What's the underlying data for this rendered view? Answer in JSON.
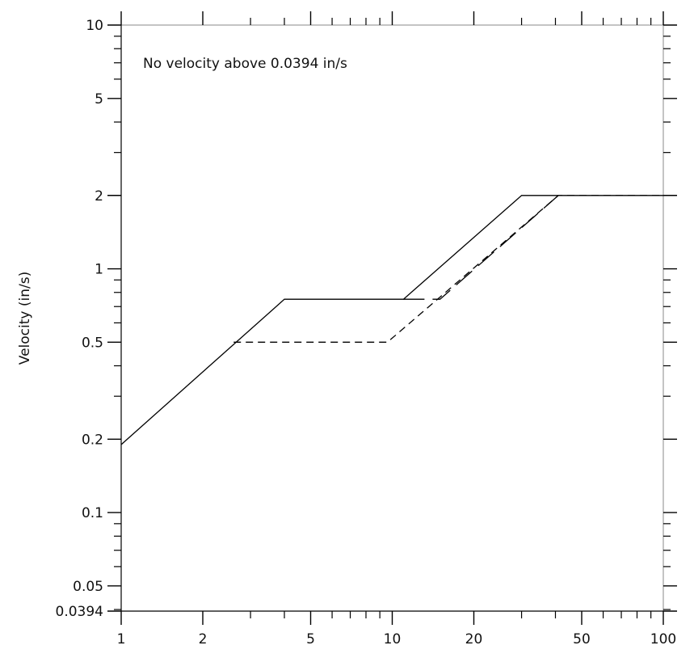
{
  "chart_data": {
    "type": "line",
    "title": "",
    "xlabel": "",
    "ylabel": "Velocity (in/s)",
    "xscale": "log",
    "yscale": "log",
    "xlim": [
      1,
      100
    ],
    "ylim": [
      0.0394,
      10
    ],
    "grid": false,
    "legend": "none",
    "annotation": "No velocity above 0.0394 in/s",
    "x_ticks": [
      {
        "value": 1,
        "label": "1"
      },
      {
        "value": 2,
        "label": "2"
      },
      {
        "value": 5,
        "label": "5"
      },
      {
        "value": 10,
        "label": "10"
      },
      {
        "value": 20,
        "label": "20"
      },
      {
        "value": 50,
        "label": "50"
      },
      {
        "value": 100,
        "label": "100"
      }
    ],
    "y_ticks": [
      {
        "value": 10,
        "label": "10"
      },
      {
        "value": 5,
        "label": "5"
      },
      {
        "value": 2,
        "label": "2"
      },
      {
        "value": 1,
        "label": "1"
      },
      {
        "value": 0.5,
        "label": "0.5"
      },
      {
        "value": 0.2,
        "label": "0.2"
      },
      {
        "value": 0.1,
        "label": "0.1"
      },
      {
        "value": 0.05,
        "label": "0.05"
      },
      {
        "value": 0.0394,
        "label": "0.0394"
      }
    ],
    "series": [
      {
        "style": "solid",
        "color": "#000000",
        "x": [
          1,
          4,
          11,
          30,
          100
        ],
        "y": [
          0.19,
          0.75,
          0.75,
          2,
          2
        ]
      },
      {
        "style": "dashed",
        "color": "#000000",
        "x": [
          2.6,
          9.6,
          41,
          100
        ],
        "y": [
          0.5,
          0.5,
          2,
          2
        ]
      },
      {
        "style": "long-dashed",
        "color": "#000000",
        "x": [
          11,
          15,
          41
        ],
        "y": [
          0.75,
          0.75,
          2
        ]
      }
    ]
  }
}
